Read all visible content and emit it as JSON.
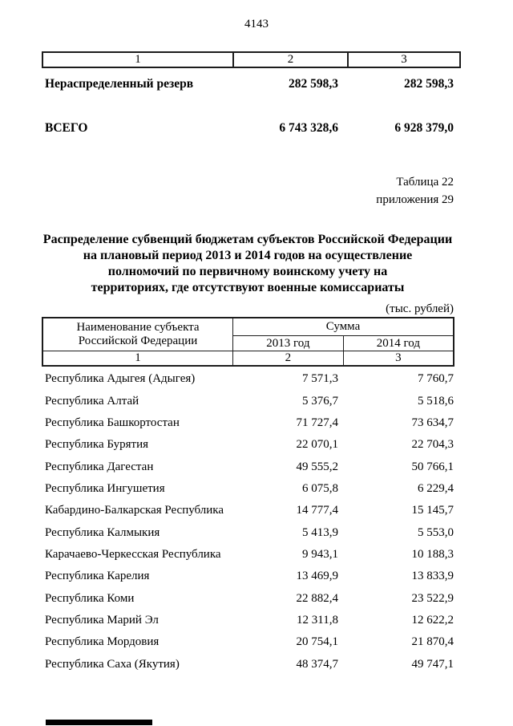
{
  "page": {
    "number": "4143",
    "table_ref": "Таблица 22",
    "annex_ref": "приложения 29",
    "title_lines": [
      "Распределение субвенций бюджетам субъектов Российской Федерации",
      "на плановый период 2013 и 2014 годов на осуществление",
      "полномочий по первичному воинскому учету на",
      "территориях, где отсутствуют военные комиссариаты"
    ],
    "units_note": "(тыс. рублей)"
  },
  "top_table": {
    "column_numbers": [
      "1",
      "2",
      "3"
    ],
    "rows": [
      {
        "label": "Нераспределенный резерв",
        "v2013": "282 598,3",
        "v2014": "282 598,3"
      },
      {
        "label": "ВСЕГО",
        "v2013": "6 743 328,6",
        "v2014": "6 928 379,0"
      }
    ]
  },
  "main_table": {
    "header": {
      "name_col_line1": "Наименование субъекта",
      "name_col_line2": "Российской Федерации",
      "sum_group": "Сумма",
      "year_2013": "2013 год",
      "year_2014": "2014 год",
      "column_numbers": [
        "1",
        "2",
        "3"
      ]
    },
    "rows": [
      {
        "name": "Республика Адыгея (Адыгея)",
        "v2013": "7 571,3",
        "v2014": "7 760,7"
      },
      {
        "name": "Республика Алтай",
        "v2013": "5 376,7",
        "v2014": "5 518,6"
      },
      {
        "name": "Республика Башкортостан",
        "v2013": "71 727,4",
        "v2014": "73 634,7"
      },
      {
        "name": "Республика Бурятия",
        "v2013": "22 070,1",
        "v2014": "22 704,3"
      },
      {
        "name": "Республика Дагестан",
        "v2013": "49 555,2",
        "v2014": "50 766,1"
      },
      {
        "name": "Республика Ингушетия",
        "v2013": "6 075,8",
        "v2014": "6 229,4"
      },
      {
        "name": "Кабардино-Балкарская Республика",
        "v2013": "14 777,4",
        "v2014": "15 145,7"
      },
      {
        "name": "Республика Калмыкия",
        "v2013": "5 413,9",
        "v2014": "5 553,0"
      },
      {
        "name": "Карачаево-Черкесская Республика",
        "v2013": "9 943,1",
        "v2014": "10 188,3"
      },
      {
        "name": "Республика Карелия",
        "v2013": "13 469,9",
        "v2014": "13 833,9"
      },
      {
        "name": "Республика Коми",
        "v2013": "22 882,4",
        "v2014": "23 522,9"
      },
      {
        "name": "Республика Марий Эл",
        "v2013": "12 311,8",
        "v2014": "12 622,2"
      },
      {
        "name": "Республика Мордовия",
        "v2013": "20 754,1",
        "v2014": "21 870,4"
      },
      {
        "name": "Республика Саха (Якутия)",
        "v2013": "48 374,7",
        "v2014": "49 747,1"
      }
    ]
  }
}
